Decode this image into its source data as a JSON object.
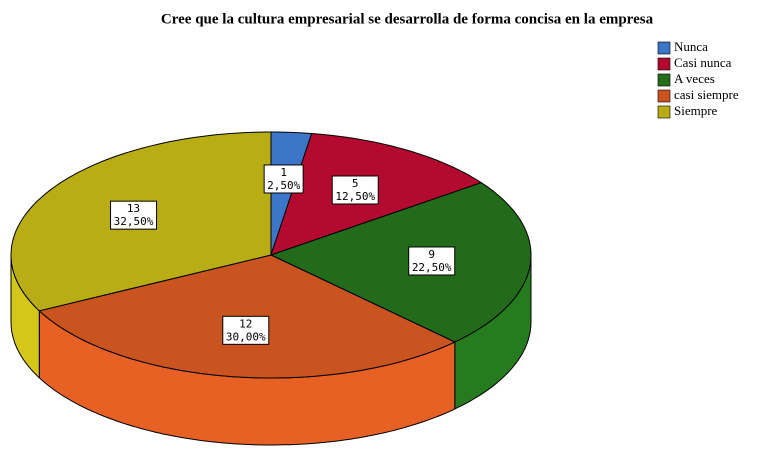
{
  "chart_data": {
    "type": "pie3d",
    "title": "Cree que la cultura empresarial se desarrolla de forma concisa en la empresa",
    "categories": [
      "Nunca",
      "Casi nunca",
      "A veces",
      "casi siempre",
      "Siempre"
    ],
    "counts": [
      1,
      5,
      9,
      12,
      13
    ],
    "percentages": [
      2.5,
      12.5,
      22.5,
      30,
      32.5
    ],
    "percentage_labels": [
      "2,50%",
      "12,50%",
      "22,50%",
      "30,00%",
      "32,50%"
    ],
    "colors": [
      "#3d76c8",
      "#b50a30",
      "#216b1a",
      "#c9541f",
      "#b9ad16"
    ],
    "legend": "top-right"
  }
}
